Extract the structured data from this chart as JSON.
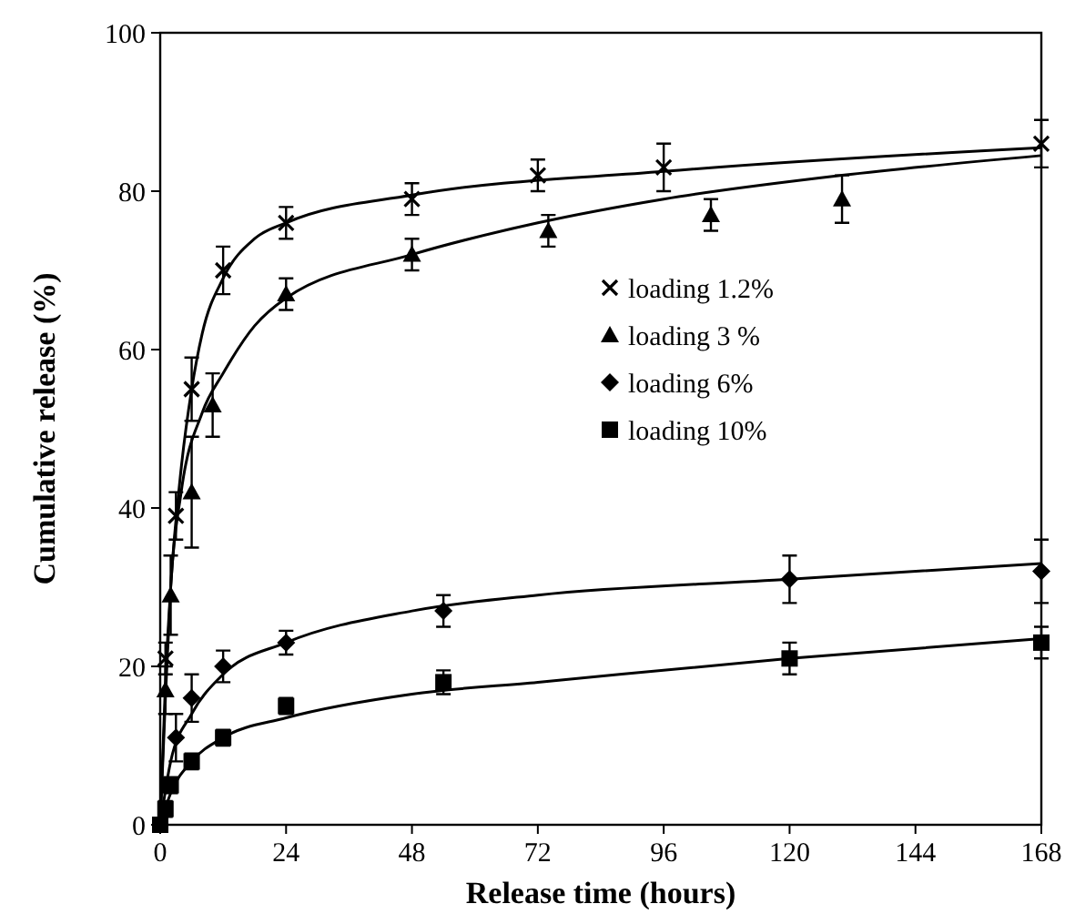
{
  "chart_data": {
    "type": "scatter",
    "xlabel": "Release time (hours)",
    "ylabel": "Cumulative release (%)",
    "xlim": [
      0,
      168
    ],
    "ylim": [
      0,
      100
    ],
    "xticks": [
      0,
      24,
      48,
      72,
      96,
      120,
      144,
      168
    ],
    "yticks": [
      0,
      20,
      40,
      60,
      80,
      100
    ],
    "grid": false,
    "legend": "right",
    "series": [
      {
        "name": "loading 1.2%",
        "color": "#000000",
        "marker": "cross",
        "x": [
          1,
          3,
          6,
          12,
          24,
          48,
          72,
          96,
          168
        ],
        "values": [
          21,
          39,
          55,
          70,
          76,
          79,
          82,
          83,
          86
        ],
        "errors": [
          2,
          3,
          4,
          3,
          2,
          2,
          2,
          3,
          3
        ]
      },
      {
        "name": "loading 3 %",
        "color": "#000000",
        "marker": "triangle",
        "x": [
          1,
          2,
          6,
          10,
          24,
          48,
          74,
          105,
          130
        ],
        "values": [
          17,
          29,
          42,
          53,
          67,
          72,
          75,
          77,
          79
        ],
        "errors": [
          3,
          5,
          7,
          4,
          2,
          2,
          2,
          2,
          3
        ]
      },
      {
        "name": "loading 6%",
        "color": "#000000",
        "marker": "diamond",
        "x": [
          3,
          6,
          12,
          24,
          54,
          120,
          168
        ],
        "values": [
          11,
          16,
          20,
          23,
          27,
          31,
          32
        ],
        "errors": [
          3,
          3,
          2,
          1.5,
          2,
          3,
          4
        ]
      },
      {
        "name": "loading 10%",
        "color": "#000000",
        "marker": "square",
        "x": [
          0,
          1,
          2,
          6,
          12,
          24,
          54,
          120,
          168
        ],
        "values": [
          0,
          2,
          5,
          8,
          11,
          15,
          18,
          21,
          23
        ],
        "errors": [
          null,
          1,
          1,
          1,
          1,
          1,
          1.5,
          2,
          2
        ]
      },
      {
        "type": "line",
        "color": "#000000",
        "marker": "none",
        "x": [
          0,
          1,
          2,
          4,
          6,
          8,
          12,
          18,
          24,
          48,
          96,
          168
        ],
        "values": [
          0,
          18,
          30,
          45,
          55,
          62,
          69,
          74,
          76,
          79.5,
          82.5,
          85.5
        ]
      },
      {
        "type": "line",
        "color": "#000000",
        "marker": "none",
        "x": [
          0,
          1,
          2,
          4,
          8,
          12,
          18,
          24,
          48,
          72,
          96,
          130,
          168
        ],
        "values": [
          0,
          16,
          30,
          42,
          52,
          57,
          63,
          66.5,
          72,
          76,
          79,
          82,
          84.5
        ]
      },
      {
        "type": "line",
        "color": "#000000",
        "marker": "none",
        "x": [
          0,
          2,
          6,
          12,
          24,
          48,
          72,
          120,
          168
        ],
        "values": [
          0,
          8,
          14,
          19,
          23,
          27,
          29,
          31,
          33
        ]
      },
      {
        "type": "line",
        "color": "#000000",
        "marker": "none",
        "x": [
          0,
          2,
          6,
          12,
          24,
          48,
          72,
          120,
          168
        ],
        "values": [
          0,
          4,
          8,
          11,
          13.5,
          16.5,
          18,
          21,
          23.5
        ]
      }
    ]
  }
}
